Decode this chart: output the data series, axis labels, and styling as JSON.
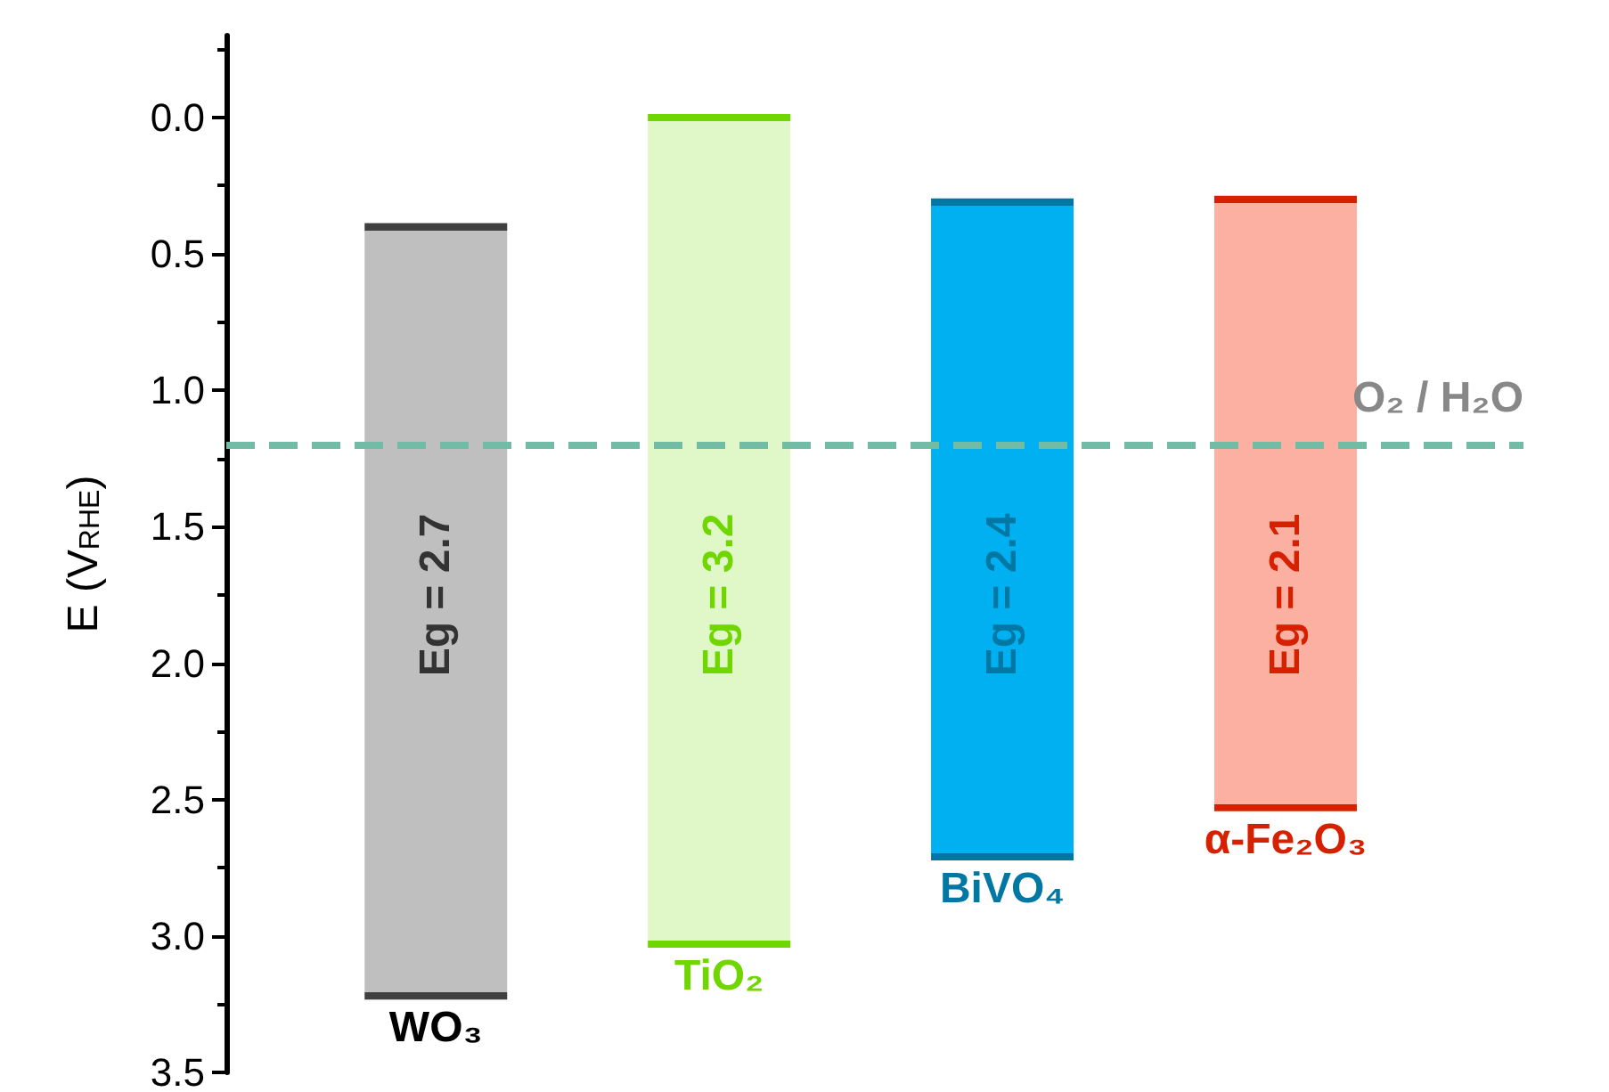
{
  "chart_data": {
    "type": "bar",
    "ylabel": "E (V$_{RHE}$)",
    "categories": [
      "WO₃",
      "TiO₂",
      "BiVO₄",
      "α-Fe₂O₃"
    ],
    "base": [
      0.4,
      0.0,
      0.31,
      0.3
    ],
    "values": [
      2.82,
      3.03,
      2.4,
      2.23
    ],
    "colors": [
      "#bfbfbf",
      "#e0f7c8",
      "#00b0f0",
      "#fbb0a2"
    ],
    "annotations": [
      "Eg = 2.7",
      "Eg = 3.2",
      "Eg = 2.4",
      "Eg = 2.1"
    ],
    "ylim": [
      3.5,
      -0.3
    ],
    "yticks": [
      {
        "value": 0,
        "label": "0.0"
      },
      0.5,
      {
        "value": 1,
        "label": "1.0"
      },
      1.5,
      {
        "value": 2,
        "label": "2.0"
      },
      2.5,
      {
        "value": 3,
        "label": "3.0"
      },
      3.5
    ],
    "ref_lines": [
      {
        "axis": "y",
        "value": 1.2,
        "label": "O₂ / H₂O",
        "color": "#72bca6",
        "line_style": "dashed"
      }
    ],
    "grid": false
  }
}
